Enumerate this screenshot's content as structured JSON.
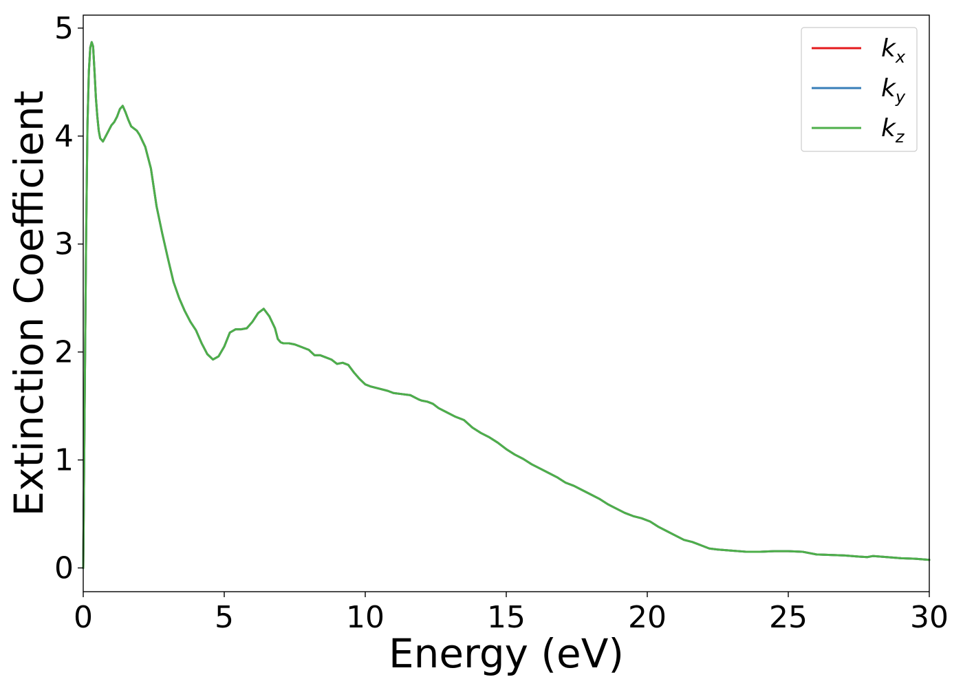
{
  "chart_data": {
    "type": "line",
    "title": "",
    "xlabel": "Energy (eV)",
    "ylabel": "Extinction Coefficient",
    "xlim": [
      0,
      30
    ],
    "ylim": [
      -0.22,
      5.12
    ],
    "xticks": [
      0,
      5,
      10,
      15,
      20,
      25,
      30
    ],
    "yticks": [
      0,
      1,
      2,
      3,
      4,
      5
    ],
    "grid": false,
    "legend_position": "top-right",
    "legend": [
      {
        "base": "k",
        "sub": "x",
        "color": "#e41a1c"
      },
      {
        "base": "k",
        "sub": "y",
        "color": "#377eb8"
      },
      {
        "base": "k",
        "sub": "z",
        "color": "#4daf4a"
      }
    ],
    "x": [
      0,
      0.05,
      0.1,
      0.15,
      0.2,
      0.25,
      0.3,
      0.35,
      0.4,
      0.45,
      0.5,
      0.55,
      0.6,
      0.7,
      0.8,
      0.9,
      1.0,
      1.1,
      1.2,
      1.3,
      1.4,
      1.5,
      1.6,
      1.7,
      1.8,
      1.9,
      2.0,
      2.2,
      2.4,
      2.6,
      2.8,
      3.0,
      3.2,
      3.4,
      3.6,
      3.8,
      4.0,
      4.2,
      4.4,
      4.6,
      4.8,
      5.0,
      5.2,
      5.4,
      5.6,
      5.8,
      6.0,
      6.2,
      6.4,
      6.6,
      6.8,
      6.9,
      7.0,
      7.1,
      7.2,
      7.3,
      7.5,
      7.7,
      8.0,
      8.2,
      8.4,
      8.6,
      8.8,
      9.0,
      9.2,
      9.4,
      9.6,
      9.8,
      10.0,
      10.2,
      10.5,
      10.8,
      11.0,
      11.3,
      11.6,
      11.9,
      12.0,
      12.2,
      12.4,
      12.6,
      12.9,
      13.2,
      13.5,
      13.8,
      14.1,
      14.4,
      14.7,
      15.0,
      15.3,
      15.6,
      15.9,
      16.2,
      16.5,
      16.8,
      17.1,
      17.4,
      17.7,
      18.0,
      18.3,
      18.6,
      18.9,
      19.2,
      19.5,
      19.8,
      20.1,
      20.4,
      20.7,
      21.0,
      21.3,
      21.6,
      21.9,
      22.2,
      22.5,
      23.0,
      23.5,
      24.0,
      24.5,
      25.0,
      25.5,
      26.0,
      26.5,
      27.0,
      27.5,
      27.8,
      28.0,
      28.5,
      29.0,
      29.5,
      30.0
    ],
    "series": [
      {
        "name": "k_x",
        "color": "#e41a1c",
        "values": [
          0.0,
          1.5,
          3.0,
          4.1,
          4.6,
          4.82,
          4.87,
          4.83,
          4.6,
          4.35,
          4.18,
          4.05,
          3.98,
          3.95,
          4.0,
          4.05,
          4.1,
          4.13,
          4.18,
          4.25,
          4.28,
          4.22,
          4.15,
          4.09,
          4.07,
          4.05,
          4.01,
          3.9,
          3.7,
          3.35,
          3.1,
          2.87,
          2.65,
          2.5,
          2.38,
          2.28,
          2.2,
          2.08,
          1.98,
          1.93,
          1.96,
          2.05,
          2.18,
          2.21,
          2.21,
          2.22,
          2.28,
          2.36,
          2.4,
          2.33,
          2.22,
          2.12,
          2.09,
          2.08,
          2.08,
          2.08,
          2.07,
          2.05,
          2.02,
          1.97,
          1.97,
          1.95,
          1.93,
          1.89,
          1.9,
          1.88,
          1.81,
          1.75,
          1.7,
          1.68,
          1.66,
          1.64,
          1.62,
          1.61,
          1.6,
          1.56,
          1.55,
          1.54,
          1.52,
          1.48,
          1.44,
          1.4,
          1.37,
          1.3,
          1.25,
          1.21,
          1.16,
          1.1,
          1.05,
          1.01,
          0.96,
          0.92,
          0.88,
          0.84,
          0.79,
          0.76,
          0.72,
          0.68,
          0.64,
          0.59,
          0.55,
          0.51,
          0.48,
          0.46,
          0.43,
          0.38,
          0.34,
          0.3,
          0.26,
          0.24,
          0.21,
          0.18,
          0.17,
          0.16,
          0.15,
          0.15,
          0.155,
          0.155,
          0.15,
          0.125,
          0.12,
          0.115,
          0.105,
          0.1,
          0.11,
          0.1,
          0.09,
          0.085,
          0.075
        ]
      },
      {
        "name": "k_y",
        "color": "#377eb8",
        "values": [
          0.0,
          1.5,
          3.0,
          4.1,
          4.6,
          4.82,
          4.87,
          4.83,
          4.6,
          4.35,
          4.18,
          4.05,
          3.98,
          3.95,
          4.0,
          4.05,
          4.1,
          4.13,
          4.18,
          4.25,
          4.28,
          4.22,
          4.15,
          4.09,
          4.07,
          4.05,
          4.01,
          3.9,
          3.7,
          3.35,
          3.1,
          2.87,
          2.65,
          2.5,
          2.38,
          2.28,
          2.2,
          2.08,
          1.98,
          1.93,
          1.96,
          2.05,
          2.18,
          2.21,
          2.21,
          2.22,
          2.28,
          2.36,
          2.4,
          2.33,
          2.22,
          2.12,
          2.09,
          2.08,
          2.08,
          2.08,
          2.07,
          2.05,
          2.02,
          1.97,
          1.97,
          1.95,
          1.93,
          1.89,
          1.9,
          1.88,
          1.81,
          1.75,
          1.7,
          1.68,
          1.66,
          1.64,
          1.62,
          1.61,
          1.6,
          1.56,
          1.55,
          1.54,
          1.52,
          1.48,
          1.44,
          1.4,
          1.37,
          1.3,
          1.25,
          1.21,
          1.16,
          1.1,
          1.05,
          1.01,
          0.96,
          0.92,
          0.88,
          0.84,
          0.79,
          0.76,
          0.72,
          0.68,
          0.64,
          0.59,
          0.55,
          0.51,
          0.48,
          0.46,
          0.43,
          0.38,
          0.34,
          0.3,
          0.26,
          0.24,
          0.21,
          0.18,
          0.17,
          0.16,
          0.15,
          0.15,
          0.155,
          0.155,
          0.15,
          0.125,
          0.12,
          0.115,
          0.105,
          0.1,
          0.11,
          0.1,
          0.09,
          0.085,
          0.075
        ]
      },
      {
        "name": "k_z",
        "color": "#4daf4a",
        "values": [
          0.0,
          1.5,
          3.0,
          4.1,
          4.6,
          4.82,
          4.87,
          4.83,
          4.6,
          4.35,
          4.18,
          4.05,
          3.98,
          3.95,
          4.0,
          4.05,
          4.1,
          4.13,
          4.18,
          4.25,
          4.28,
          4.22,
          4.15,
          4.09,
          4.07,
          4.05,
          4.01,
          3.9,
          3.7,
          3.35,
          3.1,
          2.87,
          2.65,
          2.5,
          2.38,
          2.28,
          2.2,
          2.08,
          1.98,
          1.93,
          1.96,
          2.05,
          2.18,
          2.21,
          2.21,
          2.22,
          2.28,
          2.36,
          2.4,
          2.33,
          2.22,
          2.12,
          2.09,
          2.08,
          2.08,
          2.08,
          2.07,
          2.05,
          2.02,
          1.97,
          1.97,
          1.95,
          1.93,
          1.89,
          1.9,
          1.88,
          1.81,
          1.75,
          1.7,
          1.68,
          1.66,
          1.64,
          1.62,
          1.61,
          1.6,
          1.56,
          1.55,
          1.54,
          1.52,
          1.48,
          1.44,
          1.4,
          1.37,
          1.3,
          1.25,
          1.21,
          1.16,
          1.1,
          1.05,
          1.01,
          0.96,
          0.92,
          0.88,
          0.84,
          0.79,
          0.76,
          0.72,
          0.68,
          0.64,
          0.59,
          0.55,
          0.51,
          0.48,
          0.46,
          0.43,
          0.38,
          0.34,
          0.3,
          0.26,
          0.24,
          0.21,
          0.18,
          0.17,
          0.16,
          0.15,
          0.15,
          0.155,
          0.155,
          0.15,
          0.125,
          0.12,
          0.115,
          0.105,
          0.1,
          0.11,
          0.1,
          0.09,
          0.085,
          0.075
        ]
      }
    ]
  }
}
